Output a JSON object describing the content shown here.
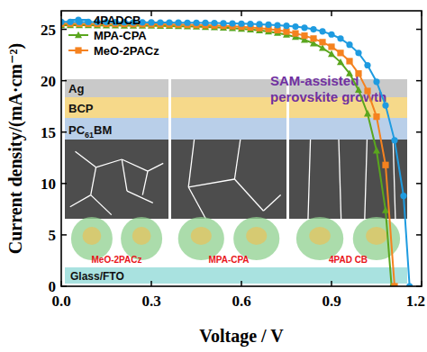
{
  "chart_data": {
    "type": "line",
    "x_label": "Voltage / V",
    "y_label": "Current density/(mA·cm⁻²)",
    "xlim": [
      0,
      1.2
    ],
    "ylim": [
      0,
      26.8
    ],
    "xticks": [
      {
        "value": 0,
        "label": "0.0"
      },
      0.3,
      0.6,
      0.9,
      1.2
    ],
    "yticks": [
      0,
      5,
      10,
      15,
      20,
      25
    ],
    "grid": false,
    "legend": "upper left",
    "annotations": [
      "SAM-assisted",
      "perovskite growth"
    ],
    "inset": {
      "layers": [
        "Ag",
        "BCP",
        "PC61BM"
      ],
      "substrate": "Glass/FTO",
      "molecules": [
        "MeO-2PACz",
        "MPA-CPA",
        "4PAD CB"
      ]
    },
    "series": [
      {
        "name": "4PADCB",
        "color": "#1e9be0",
        "marker": "circle",
        "line_style": "solid",
        "x": [
          0,
          0.03,
          0.06,
          0.09,
          0.12,
          0.15,
          0.18,
          0.21,
          0.24,
          0.27,
          0.3,
          0.33,
          0.36,
          0.39,
          0.42,
          0.45,
          0.48,
          0.51,
          0.54,
          0.57,
          0.6,
          0.63,
          0.66,
          0.69,
          0.72,
          0.75,
          0.78,
          0.81,
          0.84,
          0.87,
          0.9,
          0.93,
          0.96,
          0.99,
          1.02,
          1.05,
          1.08,
          1.11,
          1.14,
          1.16
        ],
        "values": [
          25.72,
          25.72,
          25.71,
          25.71,
          25.7,
          25.7,
          25.69,
          25.69,
          25.68,
          25.68,
          25.67,
          25.66,
          25.66,
          25.65,
          25.64,
          25.63,
          25.62,
          25.61,
          25.59,
          25.57,
          25.55,
          25.52,
          25.49,
          25.45,
          25.4,
          25.34,
          25.26,
          25.15,
          25.0,
          24.8,
          24.5,
          24.1,
          23.5,
          22.7,
          21.5,
          19.9,
          17.6,
          14.2,
          8.8,
          0
        ]
      },
      {
        "name": "MPA-CPA",
        "color": "#5aa61e",
        "marker": "triangle",
        "line_style": "solid",
        "x": [
          0,
          0.03,
          0.06,
          0.09,
          0.12,
          0.15,
          0.18,
          0.21,
          0.24,
          0.27,
          0.3,
          0.33,
          0.36,
          0.39,
          0.42,
          0.45,
          0.48,
          0.51,
          0.54,
          0.57,
          0.6,
          0.63,
          0.66,
          0.69,
          0.72,
          0.75,
          0.78,
          0.81,
          0.84,
          0.87,
          0.9,
          0.93,
          0.96,
          0.99,
          1.02,
          1.05,
          1.08,
          1.1
        ],
        "values": [
          25.4,
          25.4,
          25.39,
          25.39,
          25.38,
          25.38,
          25.37,
          25.36,
          25.36,
          25.35,
          25.34,
          25.33,
          25.32,
          25.3,
          25.28,
          25.26,
          25.23,
          25.2,
          25.16,
          25.11,
          25.05,
          24.98,
          24.89,
          24.78,
          24.64,
          24.47,
          24.25,
          23.98,
          23.63,
          23.18,
          22.6,
          21.8,
          20.7,
          19.1,
          16.8,
          13.2,
          7.4,
          0
        ]
      },
      {
        "name": "MeO-2PACz",
        "color": "#f5821f",
        "marker": "square",
        "line_style": "solid",
        "x": [
          0,
          0.03,
          0.06,
          0.09,
          0.12,
          0.15,
          0.18,
          0.21,
          0.24,
          0.27,
          0.3,
          0.33,
          0.36,
          0.39,
          0.42,
          0.45,
          0.48,
          0.51,
          0.54,
          0.57,
          0.6,
          0.63,
          0.66,
          0.69,
          0.72,
          0.75,
          0.78,
          0.81,
          0.84,
          0.87,
          0.9,
          0.93,
          0.96,
          0.99,
          1.02,
          1.05,
          1.08,
          1.11
        ],
        "values": [
          25.55,
          25.55,
          25.54,
          25.54,
          25.53,
          25.53,
          25.52,
          25.52,
          25.51,
          25.5,
          25.49,
          25.48,
          25.47,
          25.46,
          25.44,
          25.42,
          25.4,
          25.37,
          25.34,
          25.3,
          25.25,
          25.19,
          25.12,
          25.03,
          24.92,
          24.78,
          24.6,
          24.38,
          24.1,
          23.75,
          23.3,
          22.7,
          21.9,
          20.7,
          19.0,
          16.5,
          11.8,
          0
        ]
      }
    ]
  }
}
